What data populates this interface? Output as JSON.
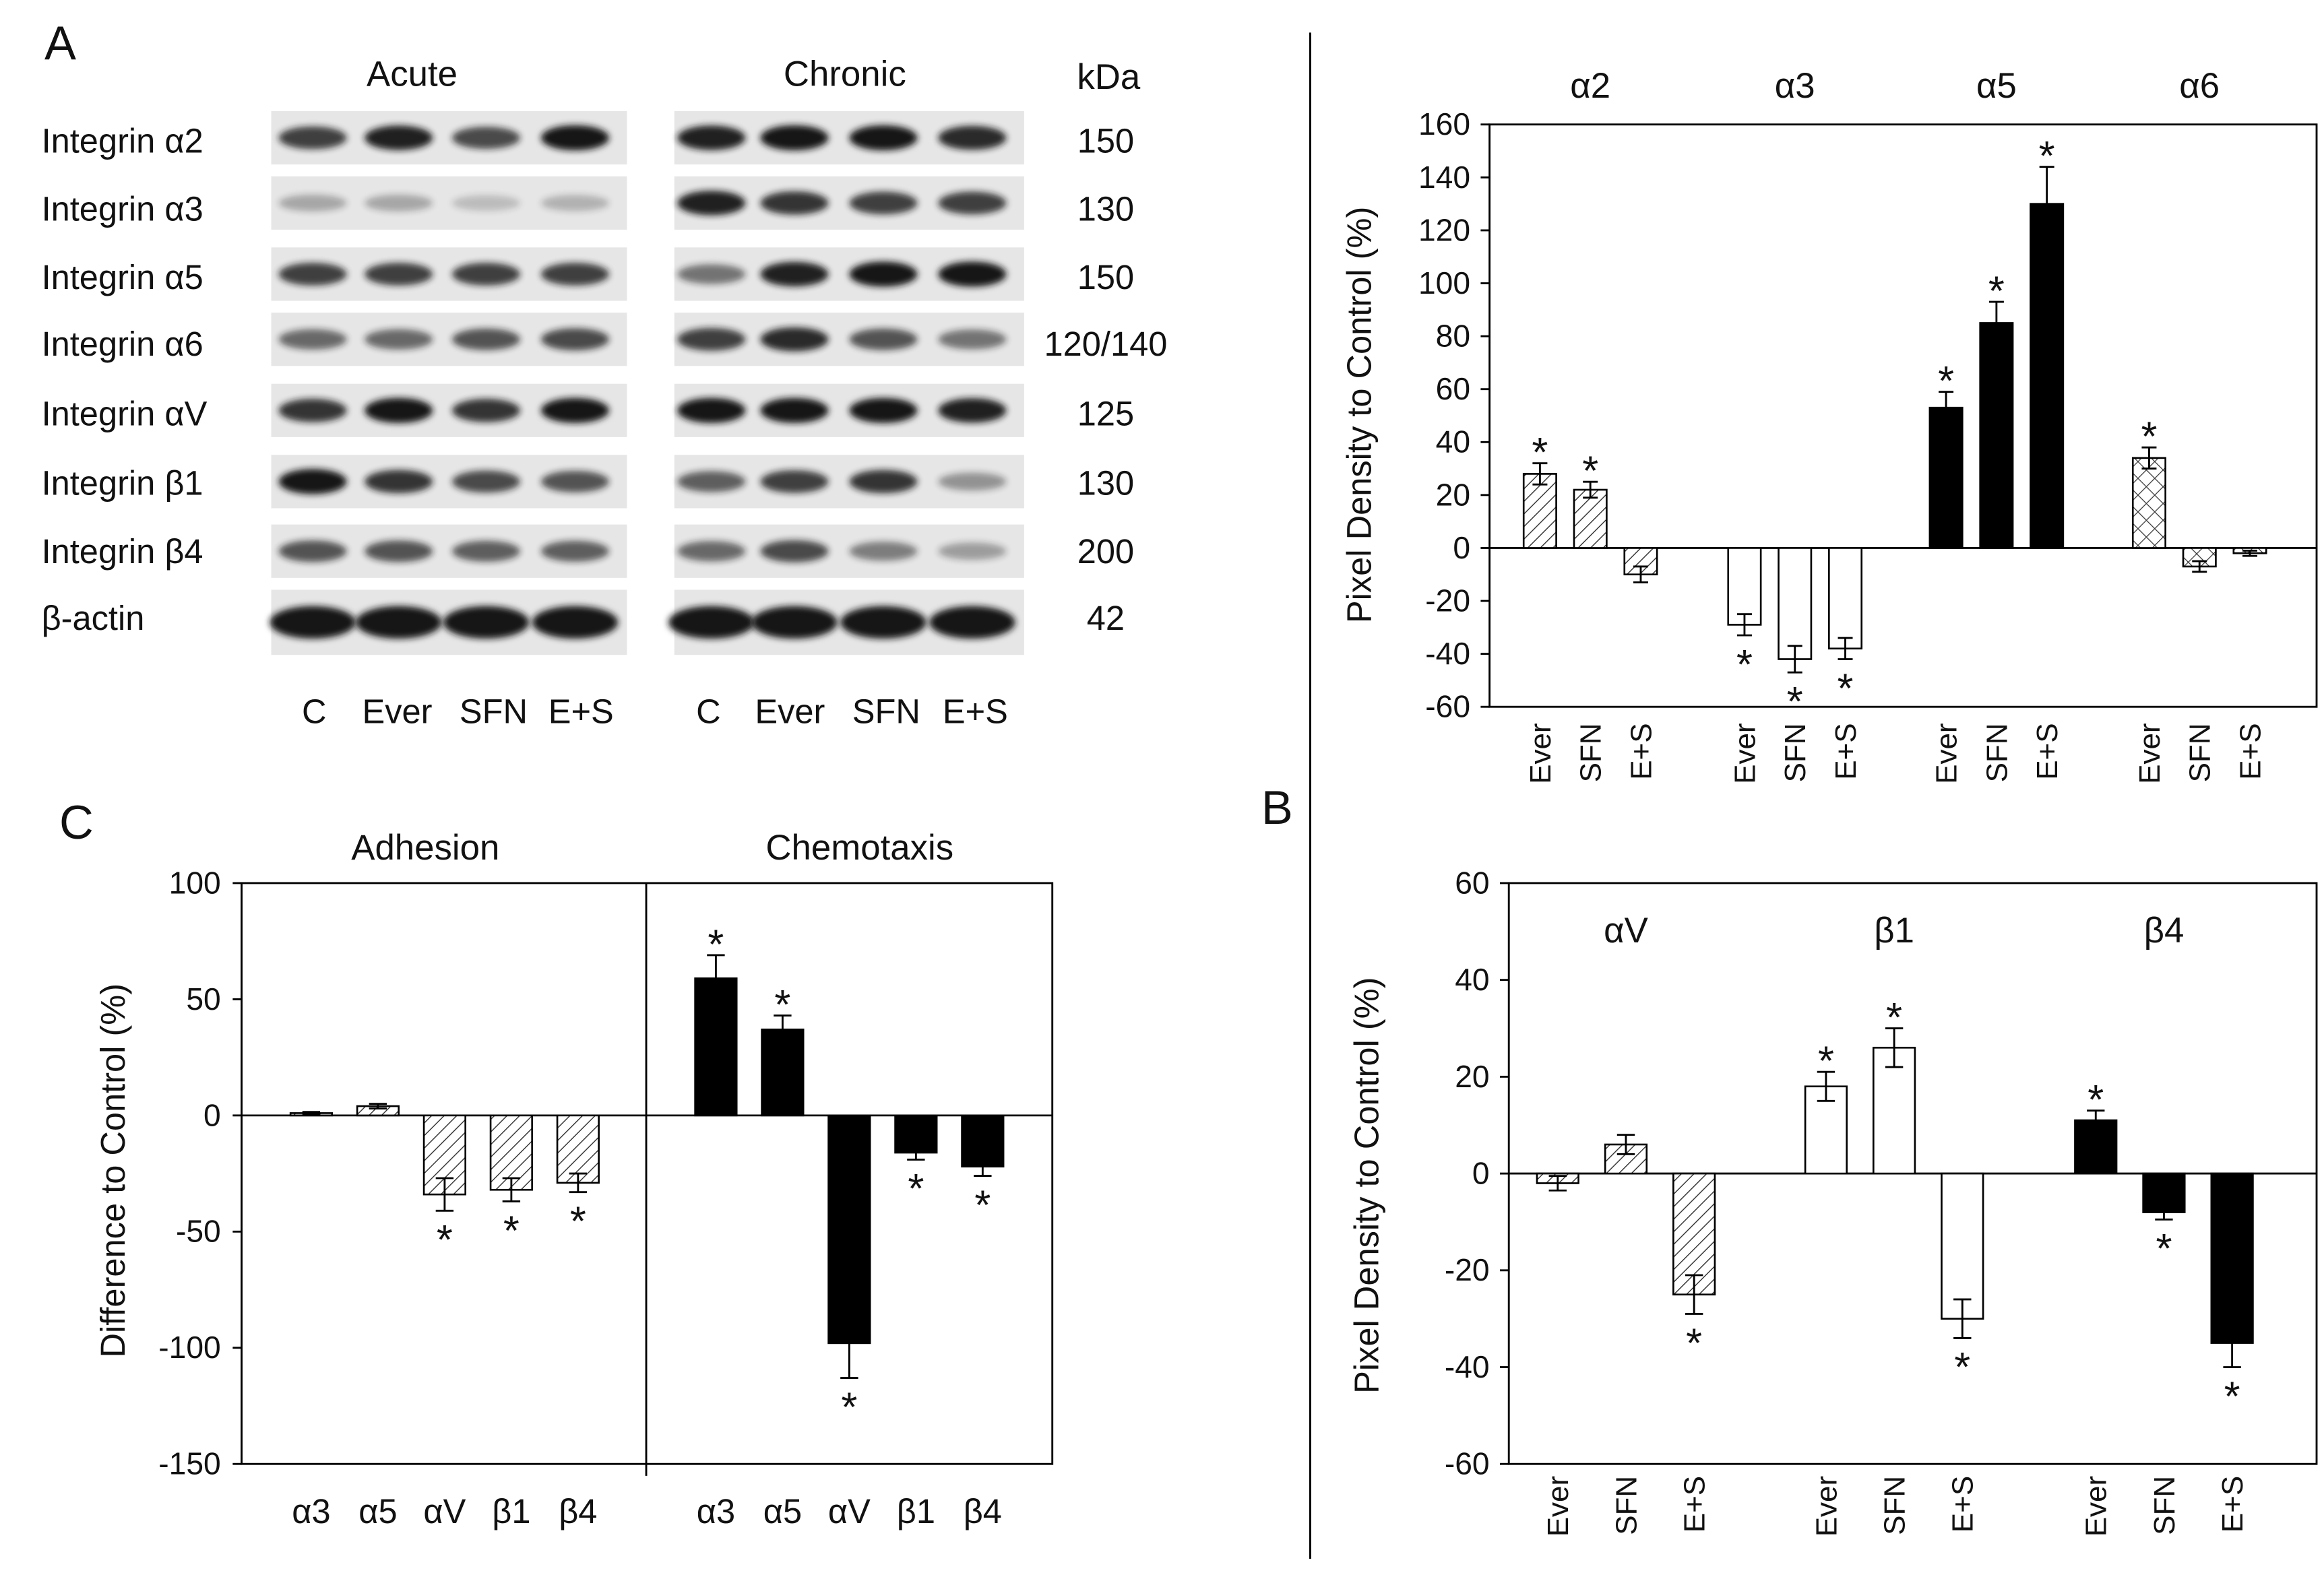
{
  "panel_labels": {
    "a": "A",
    "b": "B",
    "c": "C"
  },
  "blots": {
    "conditions": [
      "Acute",
      "Chronic"
    ],
    "kda_header": "kDa",
    "lanes": [
      "C",
      "Ever",
      "SFN",
      "E+S"
    ],
    "rows": [
      {
        "label": "Integrin α2",
        "kda": "150",
        "acute": [
          0.8,
          0.95,
          0.75,
          1.0
        ],
        "chronic": [
          0.95,
          1.0,
          1.0,
          0.9
        ]
      },
      {
        "label": "Integrin α3",
        "kda": "130",
        "acute": [
          0.3,
          0.3,
          0.2,
          0.25
        ],
        "chronic": [
          0.95,
          0.85,
          0.8,
          0.8
        ]
      },
      {
        "label": "Integrin α5",
        "kda": "150",
        "acute": [
          0.8,
          0.8,
          0.8,
          0.8
        ],
        "chronic": [
          0.55,
          0.95,
          1.0,
          1.0
        ]
      },
      {
        "label": "Integrin α6",
        "kda": "120/140",
        "acute": [
          0.6,
          0.6,
          0.7,
          0.75
        ],
        "chronic": [
          0.8,
          0.9,
          0.7,
          0.55
        ]
      },
      {
        "label": "Integrin αV",
        "kda": "125",
        "acute": [
          0.85,
          1.0,
          0.85,
          1.0
        ],
        "chronic": [
          1.0,
          1.0,
          1.0,
          0.95
        ]
      },
      {
        "label": "Integrin β1",
        "kda": "130",
        "acute": [
          1.0,
          0.85,
          0.75,
          0.7
        ],
        "chronic": [
          0.65,
          0.8,
          0.85,
          0.4
        ]
      },
      {
        "label": "Integrin β4",
        "kda": "200",
        "acute": [
          0.7,
          0.7,
          0.65,
          0.65
        ],
        "chronic": [
          0.6,
          0.75,
          0.5,
          0.35
        ]
      },
      {
        "label": "β-actin",
        "kda": "42",
        "acute": [
          1.0,
          1.0,
          1.0,
          1.0
        ],
        "chronic": [
          1.0,
          1.0,
          1.0,
          1.0
        ]
      }
    ]
  },
  "chart_data": [
    {
      "type": "bar",
      "ylabel": "Pixel Density to Control (%)",
      "ylim": [
        -60,
        160
      ],
      "yticks": [
        160,
        140,
        120,
        100,
        80,
        60,
        40,
        20,
        0,
        -20,
        -40,
        -60
      ],
      "significance_marker": "*",
      "groups": [
        {
          "name": "α2",
          "fill": "hatch",
          "bars": [
            {
              "x": "Ever",
              "y": 28,
              "err": 4,
              "sig": true
            },
            {
              "x": "SFN",
              "y": 22,
              "err": 3,
              "sig": true
            },
            {
              "x": "E+S",
              "y": -10,
              "err": 3,
              "sig": false
            }
          ]
        },
        {
          "name": "α3",
          "fill": "#ffffff",
          "bars": [
            {
              "x": "Ever",
              "y": -29,
              "err": 4,
              "sig": true
            },
            {
              "x": "SFN",
              "y": -42,
              "err": 5,
              "sig": true
            },
            {
              "x": "E+S",
              "y": -38,
              "err": 4,
              "sig": true
            }
          ]
        },
        {
          "name": "α5",
          "fill": "#000000",
          "bars": [
            {
              "x": "Ever",
              "y": 53,
              "err": 6,
              "sig": true
            },
            {
              "x": "SFN",
              "y": 85,
              "err": 8,
              "sig": true
            },
            {
              "x": "E+S",
              "y": 130,
              "err": 14,
              "sig": true
            }
          ]
        },
        {
          "name": "α6",
          "fill": "crosshatch",
          "bars": [
            {
              "x": "Ever",
              "y": 34,
              "err": 4,
              "sig": true
            },
            {
              "x": "SFN",
              "y": -7,
              "err": 2,
              "sig": false
            },
            {
              "x": "E+S",
              "y": -2,
              "err": 1,
              "sig": false
            }
          ]
        }
      ]
    },
    {
      "type": "bar",
      "ylabel": "Pixel Density to Control (%)",
      "ylim": [
        -60,
        60
      ],
      "yticks": [
        60,
        40,
        20,
        0,
        -20,
        -40,
        -60
      ],
      "significance_marker": "*",
      "groups": [
        {
          "name": "αV",
          "fill": "hatch",
          "bars": [
            {
              "x": "Ever",
              "y": -2,
              "err": 1.5,
              "sig": false
            },
            {
              "x": "SFN",
              "y": 6,
              "err": 2,
              "sig": false
            },
            {
              "x": "E+S",
              "y": -25,
              "err": 4,
              "sig": true
            }
          ]
        },
        {
          "name": "β1",
          "fill": "#ffffff",
          "bars": [
            {
              "x": "Ever",
              "y": 18,
              "err": 3,
              "sig": true
            },
            {
              "x": "SFN",
              "y": 26,
              "err": 4,
              "sig": true
            },
            {
              "x": "E+S",
              "y": -30,
              "err": 4,
              "sig": true
            }
          ]
        },
        {
          "name": "β4",
          "fill": "#000000",
          "bars": [
            {
              "x": "Ever",
              "y": 11,
              "err": 2,
              "sig": true
            },
            {
              "x": "SFN",
              "y": -8,
              "err": 1.5,
              "sig": true
            },
            {
              "x": "E+S",
              "y": -35,
              "err": 5,
              "sig": true
            }
          ]
        }
      ]
    },
    {
      "type": "bar",
      "ylabel": "Difference to Control (%)",
      "ylim": [
        -150,
        100
      ],
      "yticks": [
        100,
        50,
        0,
        -50,
        -100,
        -150
      ],
      "significance_marker": "*",
      "groups": [
        {
          "name": "Adhesion",
          "fill": "hatch",
          "bars": [
            {
              "x": "α3",
              "y": 1,
              "err": 0.5,
              "sig": false
            },
            {
              "x": "α5",
              "y": 4,
              "err": 1,
              "sig": false
            },
            {
              "x": "αV",
              "y": -34,
              "err": 7,
              "sig": true
            },
            {
              "x": "β1",
              "y": -32,
              "err": 5,
              "sig": true
            },
            {
              "x": "β4",
              "y": -29,
              "err": 4,
              "sig": true
            }
          ]
        },
        {
          "name": "Chemotaxis",
          "fill": "#000000",
          "bars": [
            {
              "x": "α3",
              "y": 59,
              "err": 10,
              "sig": true
            },
            {
              "x": "α5",
              "y": 37,
              "err": 6,
              "sig": true
            },
            {
              "x": "αV",
              "y": -98,
              "err": 15,
              "sig": true
            },
            {
              "x": "β1",
              "y": -16,
              "err": 3,
              "sig": true
            },
            {
              "x": "β4",
              "y": -22,
              "err": 4,
              "sig": true
            }
          ]
        }
      ]
    }
  ]
}
